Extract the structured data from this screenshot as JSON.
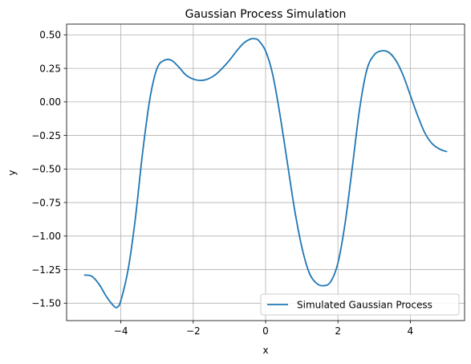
{
  "chart_data": {
    "type": "line",
    "title": "Gaussian Process Simulation",
    "xlabel": "x",
    "ylabel": "y",
    "xlim": [
      -5.5,
      5.5
    ],
    "ylim": [
      -1.63,
      0.58
    ],
    "xticks": [
      -4,
      -2,
      0,
      2,
      4
    ],
    "xtick_labels": [
      "−4",
      "−2",
      "0",
      "2",
      "4"
    ],
    "yticks": [
      -1.5,
      -1.25,
      -1.0,
      -0.75,
      -0.5,
      -0.25,
      0.0,
      0.25,
      0.5
    ],
    "ytick_labels": [
      "−1.50",
      "−1.25",
      "−1.00",
      "−0.75",
      "−0.50",
      "−0.25",
      "0.00",
      "0.25",
      "0.50"
    ],
    "grid": true,
    "legend_position": "lower-right",
    "line_color": "#1f77b4",
    "series": [
      {
        "name": "Simulated Gaussian Process",
        "x": [
          -5.0,
          -4.8,
          -4.6,
          -4.4,
          -4.2,
          -4.1,
          -4.0,
          -3.8,
          -3.6,
          -3.4,
          -3.2,
          -3.0,
          -2.8,
          -2.6,
          -2.4,
          -2.2,
          -2.0,
          -1.8,
          -1.6,
          -1.4,
          -1.2,
          -1.0,
          -0.8,
          -0.6,
          -0.4,
          -0.3,
          -0.2,
          0.0,
          0.2,
          0.4,
          0.6,
          0.8,
          1.0,
          1.2,
          1.4,
          1.6,
          1.8,
          2.0,
          2.2,
          2.4,
          2.6,
          2.8,
          3.0,
          3.2,
          3.4,
          3.6,
          3.8,
          4.0,
          4.2,
          4.4,
          4.6,
          4.8,
          5.0
        ],
        "y": [
          -1.29,
          -1.3,
          -1.36,
          -1.45,
          -1.52,
          -1.53,
          -1.48,
          -1.25,
          -0.87,
          -0.38,
          0.02,
          0.25,
          0.31,
          0.31,
          0.26,
          0.2,
          0.17,
          0.16,
          0.17,
          0.2,
          0.25,
          0.31,
          0.38,
          0.44,
          0.47,
          0.47,
          0.46,
          0.38,
          0.2,
          -0.1,
          -0.45,
          -0.8,
          -1.08,
          -1.27,
          -1.35,
          -1.37,
          -1.34,
          -1.2,
          -0.9,
          -0.48,
          -0.05,
          0.24,
          0.35,
          0.38,
          0.37,
          0.31,
          0.2,
          0.05,
          -0.1,
          -0.23,
          -0.31,
          -0.35,
          -0.37
        ]
      }
    ]
  }
}
